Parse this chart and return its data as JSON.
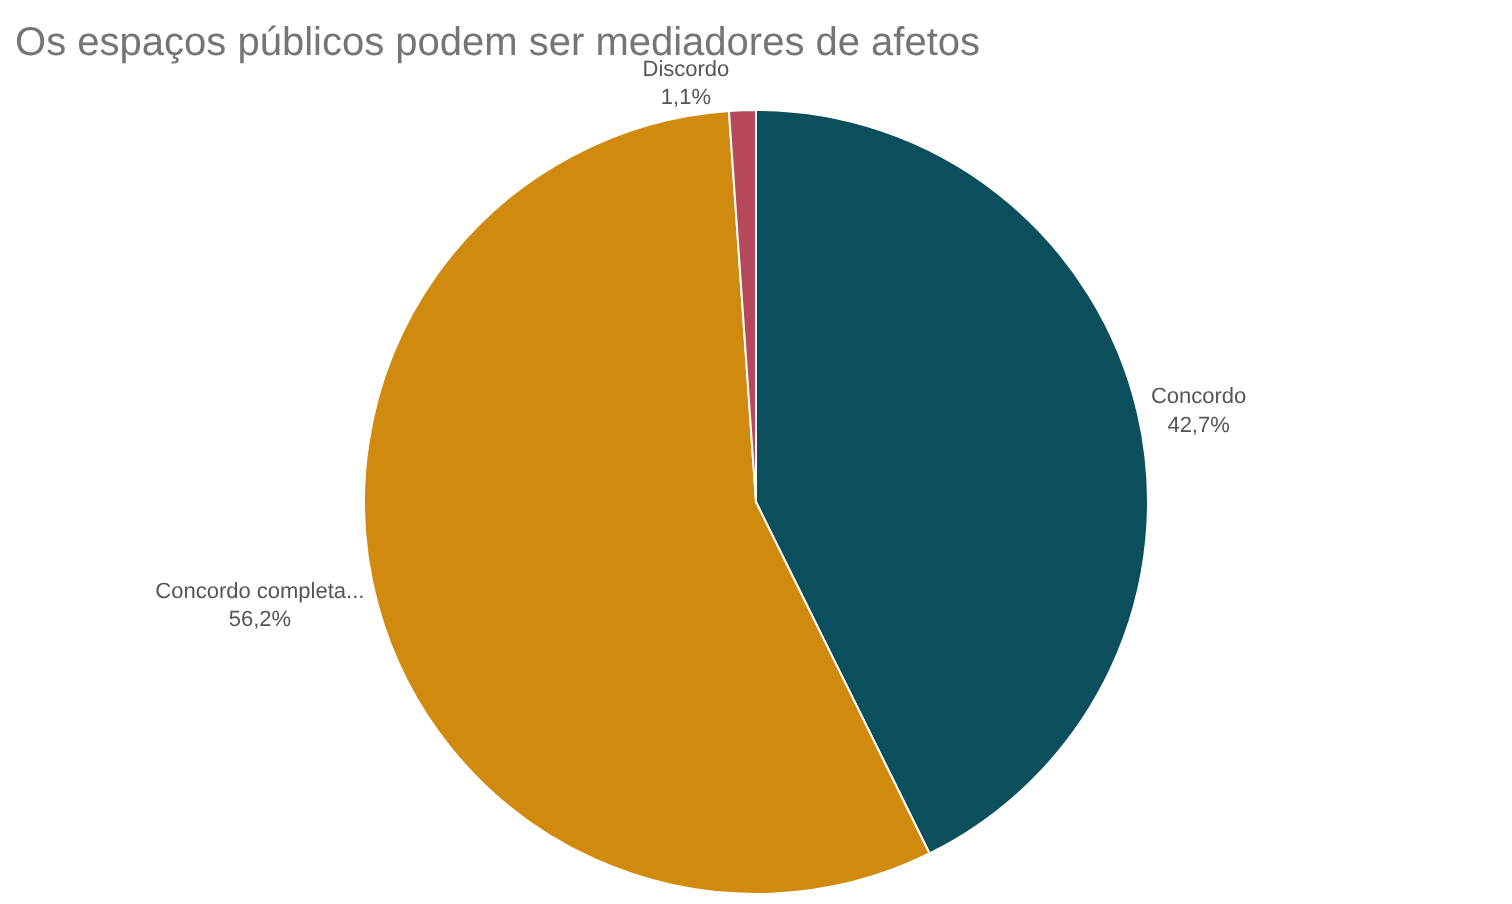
{
  "chart_data": {
    "type": "pie",
    "title": "Os espaços públicos podem ser mediadores de afetos",
    "categories": [
      "Concordo",
      "Concordo completa...",
      "Discordo"
    ],
    "values": [
      42.7,
      56.2,
      1.1
    ],
    "value_labels": [
      "42,7%",
      "56,2%",
      "1,1%"
    ],
    "colors": [
      "#0b4f5c",
      "#d08a0e",
      "#b5495b"
    ],
    "legend": false
  }
}
